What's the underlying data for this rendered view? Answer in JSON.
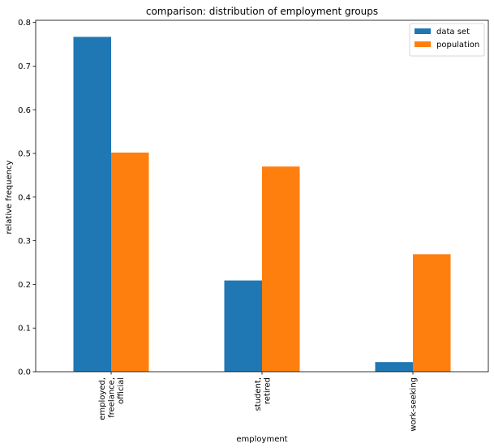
{
  "chart_data": {
    "type": "bar",
    "title": "comparison: distribution of employment groups",
    "xlabel": "employment",
    "ylabel": "relative frequency",
    "categories": [
      [
        "employed,",
        "freelance,",
        "official"
      ],
      [
        "student,",
        "retired"
      ],
      [
        "work-seeking"
      ]
    ],
    "series": [
      {
        "name": "data set",
        "color": "#1f77b4",
        "values": [
          0.767,
          0.209,
          0.022
        ]
      },
      {
        "name": "population",
        "color": "#ff7f0e",
        "values": [
          0.502,
          0.47,
          0.269
        ]
      }
    ],
    "ylim": [
      0,
      0.805
    ],
    "yticks": [
      "0.0",
      "0.1",
      "0.2",
      "0.3",
      "0.4",
      "0.5",
      "0.6",
      "0.7",
      "0.8"
    ],
    "grid": false,
    "legend": "top-right"
  }
}
